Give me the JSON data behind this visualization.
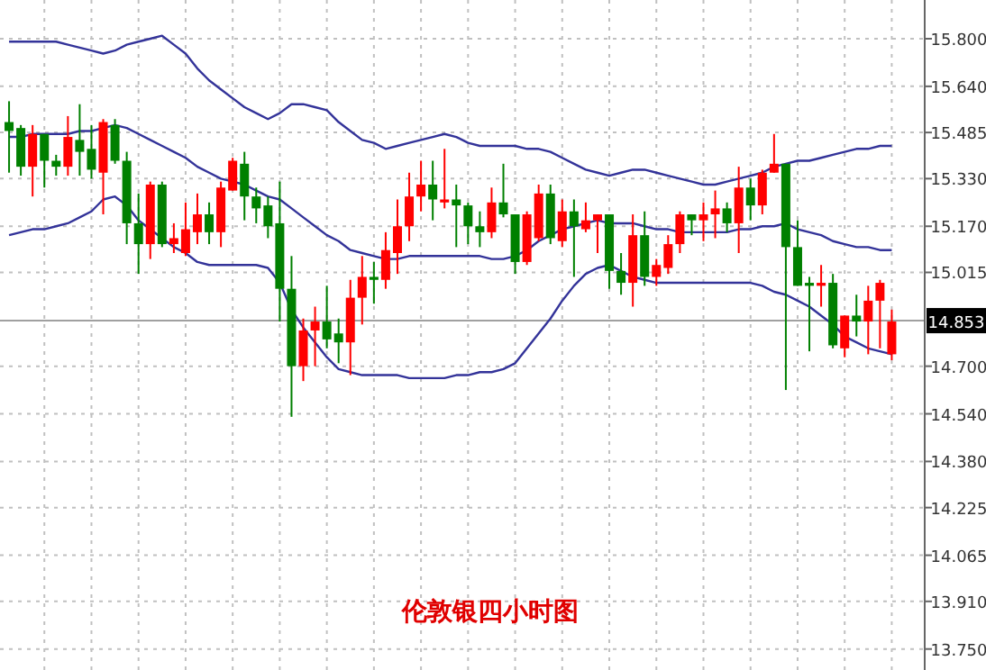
{
  "chart_data": {
    "type": "candlestick",
    "title": "伦敦银四小时图",
    "categories": [
      null,
      null,
      null,
      null,
      null,
      null,
      null,
      null,
      null,
      null,
      null,
      null,
      null,
      null,
      null,
      null,
      null,
      null,
      null,
      null,
      null,
      null,
      null,
      null,
      null,
      null,
      null,
      null,
      null,
      null,
      null,
      null,
      null,
      null,
      null,
      null,
      null,
      null,
      null,
      null,
      null,
      null,
      null,
      null,
      null,
      null,
      null,
      null,
      null,
      null,
      null,
      null,
      null,
      null,
      null,
      null,
      null,
      null,
      null,
      null,
      null,
      null,
      null,
      null,
      null,
      null,
      null,
      null,
      null,
      null,
      null,
      null,
      null,
      null,
      null,
      null
    ],
    "ohlc": [
      [
        15.52,
        15.59,
        15.35,
        15.49
      ],
      [
        15.5,
        15.51,
        15.34,
        15.37
      ],
      [
        15.37,
        15.51,
        15.27,
        15.48
      ],
      [
        15.48,
        15.48,
        15.3,
        15.39
      ],
      [
        15.39,
        15.41,
        15.34,
        15.37
      ],
      [
        15.37,
        15.54,
        15.34,
        15.47
      ],
      [
        15.46,
        15.58,
        15.34,
        15.42
      ],
      [
        15.43,
        15.51,
        15.33,
        15.36
      ],
      [
        15.35,
        15.53,
        15.21,
        15.52
      ],
      [
        15.51,
        15.53,
        15.38,
        15.39
      ],
      [
        15.39,
        15.42,
        15.11,
        15.18
      ],
      [
        15.18,
        15.28,
        15.01,
        15.11
      ],
      [
        15.11,
        15.32,
        15.06,
        15.31
      ],
      [
        15.31,
        15.32,
        15.1,
        15.11
      ],
      [
        15.11,
        15.18,
        15.08,
        15.13
      ],
      [
        15.08,
        15.25,
        15.07,
        15.16
      ],
      [
        15.15,
        15.28,
        15.11,
        15.21
      ],
      [
        15.21,
        15.25,
        15.11,
        15.15
      ],
      [
        15.15,
        15.32,
        15.1,
        15.3
      ],
      [
        15.29,
        15.4,
        15.29,
        15.39
      ],
      [
        15.38,
        15.42,
        15.19,
        15.27
      ],
      [
        15.27,
        15.3,
        15.18,
        15.23
      ],
      [
        15.24,
        15.27,
        15.13,
        15.17
      ],
      [
        15.18,
        15.32,
        14.85,
        14.96
      ],
      [
        14.96,
        15.07,
        14.53,
        14.7
      ],
      [
        14.7,
        14.86,
        14.65,
        14.82
      ],
      [
        14.82,
        14.9,
        14.7,
        14.85
      ],
      [
        14.85,
        14.97,
        14.76,
        14.79
      ],
      [
        14.81,
        14.86,
        14.71,
        14.78
      ],
      [
        14.78,
        14.99,
        14.67,
        14.93
      ],
      [
        14.93,
        15.07,
        14.84,
        15.0
      ],
      [
        15.0,
        15.05,
        14.91,
        14.99
      ],
      [
        14.99,
        15.15,
        14.96,
        15.09
      ],
      [
        15.08,
        15.26,
        15.01,
        15.17
      ],
      [
        15.17,
        15.35,
        15.12,
        15.27
      ],
      [
        15.27,
        15.39,
        15.22,
        15.31
      ],
      [
        15.31,
        15.39,
        15.19,
        15.26
      ],
      [
        15.25,
        15.43,
        15.23,
        15.26
      ],
      [
        15.26,
        15.31,
        15.1,
        15.24
      ],
      [
        15.24,
        15.25,
        15.11,
        15.17
      ],
      [
        15.17,
        15.22,
        15.1,
        15.15
      ],
      [
        15.15,
        15.3,
        15.13,
        15.25
      ],
      [
        15.25,
        15.38,
        15.2,
        15.21
      ],
      [
        15.21,
        15.21,
        15.01,
        15.05
      ],
      [
        15.05,
        15.22,
        15.04,
        15.21
      ],
      [
        15.13,
        15.31,
        15.12,
        15.28
      ],
      [
        15.28,
        15.31,
        15.11,
        15.13
      ],
      [
        15.12,
        15.26,
        15.1,
        15.22
      ],
      [
        15.22,
        15.26,
        15.0,
        15.17
      ],
      [
        15.16,
        15.25,
        15.15,
        15.19
      ],
      [
        15.19,
        15.21,
        15.08,
        15.21
      ],
      [
        15.21,
        15.21,
        14.96,
        15.02
      ],
      [
        15.02,
        15.08,
        14.94,
        14.98
      ],
      [
        14.98,
        15.21,
        14.9,
        15.14
      ],
      [
        15.14,
        15.22,
        14.97,
        15.0
      ],
      [
        15.0,
        15.06,
        14.97,
        15.04
      ],
      [
        15.03,
        15.14,
        15.01,
        15.11
      ],
      [
        15.11,
        15.22,
        15.08,
        15.21
      ],
      [
        15.21,
        15.21,
        15.14,
        15.19
      ],
      [
        15.19,
        15.25,
        15.12,
        15.21
      ],
      [
        15.21,
        15.29,
        15.13,
        15.23
      ],
      [
        15.23,
        15.25,
        15.15,
        15.18
      ],
      [
        15.18,
        15.37,
        15.08,
        15.3
      ],
      [
        15.3,
        15.33,
        15.19,
        15.24
      ],
      [
        15.24,
        15.36,
        15.21,
        15.35
      ],
      [
        15.35,
        15.48,
        15.35,
        15.38
      ],
      [
        15.38,
        15.38,
        14.62,
        15.1
      ],
      [
        15.1,
        15.19,
        14.97,
        14.97
      ],
      [
        14.98,
        15.0,
        14.75,
        14.97
      ],
      [
        14.97,
        15.04,
        14.9,
        14.98
      ],
      [
        14.98,
        15.01,
        14.76,
        14.77
      ],
      [
        14.76,
        14.87,
        14.73,
        14.87
      ],
      [
        14.87,
        14.94,
        14.8,
        14.85
      ],
      [
        14.85,
        14.97,
        14.74,
        14.92
      ],
      [
        14.92,
        14.99,
        14.76,
        14.98
      ],
      [
        14.74,
        14.89,
        14.72,
        14.85
      ]
    ],
    "colors": [
      "#008000",
      "#008000",
      "#ff0000",
      "#008000",
      "#008000",
      "#ff0000",
      "#008000",
      "#008000",
      "#ff0000",
      "#008000",
      "#008000",
      "#008000",
      "#ff0000",
      "#008000",
      "#ff0000",
      "#ff0000",
      "#ff0000",
      "#008000",
      "#ff0000",
      "#ff0000",
      "#008000",
      "#008000",
      "#008000",
      "#008000",
      "#008000",
      "#ff0000",
      "#ff0000",
      "#008000",
      "#008000",
      "#ff0000",
      "#ff0000",
      "#008000",
      "#ff0000",
      "#ff0000",
      "#ff0000",
      "#ff0000",
      "#008000",
      "#ff0000",
      "#008000",
      "#008000",
      "#008000",
      "#ff0000",
      "#008000",
      "#008000",
      "#ff0000",
      "#ff0000",
      "#008000",
      "#ff0000",
      "#008000",
      "#ff0000",
      "#ff0000",
      "#008000",
      "#008000",
      "#ff0000",
      "#008000",
      "#ff0000",
      "#ff0000",
      "#ff0000",
      "#008000",
      "#ff0000",
      "#ff0000",
      "#008000",
      "#ff0000",
      "#008000",
      "#ff0000",
      "#ff0000",
      "#008000",
      "#008000",
      "#008000",
      "#ff0000",
      "#008000",
      "#ff0000",
      "#008000",
      "#ff0000",
      "#ff0000",
      "#ff0000"
    ],
    "series": [
      {
        "type": "line",
        "color": "#333399",
        "values": [
          15.79,
          15.79,
          15.79,
          15.79,
          15.79,
          15.78,
          15.77,
          15.76,
          15.75,
          15.76,
          15.78,
          15.79,
          15.8,
          15.81,
          15.78,
          15.75,
          15.7,
          15.66,
          15.63,
          15.6,
          15.57,
          15.55,
          15.53,
          15.55,
          15.58,
          15.58,
          15.57,
          15.56,
          15.52,
          15.49,
          15.46,
          15.45,
          15.43,
          15.44,
          15.45,
          15.46,
          15.47,
          15.48,
          15.47,
          15.45,
          15.44,
          15.44,
          15.44,
          15.44,
          15.43,
          15.43,
          15.42,
          15.4,
          15.38,
          15.36,
          15.35,
          15.34,
          15.35,
          15.36,
          15.36,
          15.35,
          15.34,
          15.33,
          15.32,
          15.31,
          15.31,
          15.32,
          15.33,
          15.34,
          15.35,
          15.37,
          15.38,
          15.39,
          15.39,
          15.4,
          15.41,
          15.42,
          15.43,
          15.43,
          15.44,
          15.44
        ]
      },
      {
        "type": "line",
        "color": "#333399",
        "values": [
          15.47,
          15.47,
          15.48,
          15.48,
          15.48,
          15.48,
          15.49,
          15.49,
          15.5,
          15.51,
          15.5,
          15.48,
          15.46,
          15.44,
          15.42,
          15.4,
          15.37,
          15.35,
          15.33,
          15.32,
          15.31,
          15.29,
          15.27,
          15.26,
          15.23,
          15.2,
          15.17,
          15.14,
          15.12,
          15.09,
          15.08,
          15.07,
          15.06,
          15.06,
          15.07,
          15.07,
          15.07,
          15.07,
          15.07,
          15.07,
          15.07,
          15.06,
          15.06,
          15.07,
          15.09,
          15.12,
          15.14,
          15.16,
          15.17,
          15.18,
          15.19,
          15.18,
          15.18,
          15.18,
          15.17,
          15.16,
          15.16,
          15.15,
          15.15,
          15.15,
          15.15,
          15.15,
          15.16,
          15.16,
          15.17,
          15.17,
          15.18,
          15.16,
          15.15,
          15.14,
          15.12,
          15.11,
          15.1,
          15.1,
          15.09,
          15.09
        ]
      },
      {
        "type": "line",
        "color": "#333399",
        "values": [
          15.14,
          15.15,
          15.16,
          15.16,
          15.17,
          15.18,
          15.2,
          15.22,
          15.26,
          15.27,
          15.24,
          15.19,
          15.16,
          15.13,
          15.1,
          15.08,
          15.05,
          15.04,
          15.04,
          15.04,
          15.04,
          15.04,
          15.03,
          14.98,
          14.89,
          14.83,
          14.78,
          14.73,
          14.69,
          14.68,
          14.67,
          14.67,
          14.67,
          14.67,
          14.66,
          14.66,
          14.66,
          14.66,
          14.67,
          14.67,
          14.68,
          14.68,
          14.69,
          14.71,
          14.76,
          14.81,
          14.86,
          14.92,
          14.97,
          15.01,
          15.03,
          15.04,
          15.02,
          15.0,
          14.99,
          14.98,
          14.98,
          14.98,
          14.98,
          14.98,
          14.98,
          14.98,
          14.98,
          14.98,
          14.97,
          14.95,
          14.94,
          14.92,
          14.9,
          14.87,
          14.84,
          14.8,
          14.78,
          14.76,
          14.75,
          14.74
        ]
      }
    ],
    "ylim": [
      13.74,
      15.93
    ],
    "yticks": [
      {
        "value": 15.8,
        "label": "15.800"
      },
      {
        "value": 15.64,
        "label": "15.640"
      },
      {
        "value": 15.485,
        "label": "15.485"
      },
      {
        "value": 15.33,
        "label": "15.330"
      },
      {
        "value": 15.17,
        "label": "15.170"
      },
      {
        "value": 15.015,
        "label": "15.015"
      },
      {
        "value": 14.7,
        "label": "14.700"
      },
      {
        "value": 14.54,
        "label": "14.540"
      },
      {
        "value": 14.38,
        "label": "14.380"
      },
      {
        "value": 14.225,
        "label": "14.225"
      },
      {
        "value": 14.065,
        "label": "14.065"
      },
      {
        "value": 13.91,
        "label": "13.910"
      },
      {
        "value": 13.75,
        "label": "13.750"
      }
    ],
    "grid": true,
    "tick_labels": "y",
    "ref_lines": [
      {
        "axis": "y",
        "value": 14.853,
        "label": "14.853",
        "color": "#a0a0a0"
      }
    ]
  }
}
